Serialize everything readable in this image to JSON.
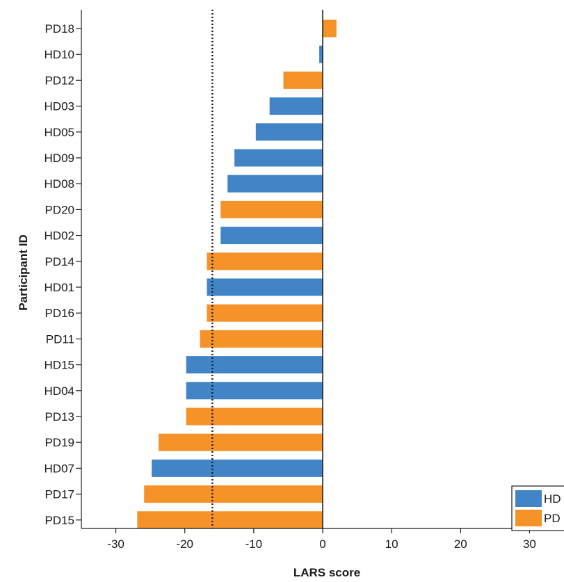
{
  "chart_data": {
    "type": "bar",
    "orientation": "horizontal",
    "xlabel": "LARS score",
    "ylabel": "Participant ID",
    "xlim": [
      -35,
      35
    ],
    "xticks": [
      -30,
      -20,
      -10,
      0,
      10,
      20,
      30
    ],
    "reference_line": {
      "x": -16,
      "style": "dotted"
    },
    "zero_line": {
      "x": 0
    },
    "grid": false,
    "legend": {
      "placement": "bottom-right",
      "entries": [
        {
          "label": "HD",
          "color": "#4285c7"
        },
        {
          "label": "PD",
          "color": "#f59228"
        }
      ]
    },
    "bars": [
      {
        "id": "PD18",
        "group": "PD",
        "value": 2
      },
      {
        "id": "HD10",
        "group": "HD",
        "value": -0.5
      },
      {
        "id": "PD12",
        "group": "PD",
        "value": -5.7
      },
      {
        "id": "HD03",
        "group": "HD",
        "value": -7.7
      },
      {
        "id": "HD05",
        "group": "HD",
        "value": -9.7
      },
      {
        "id": "HD09",
        "group": "HD",
        "value": -12.8
      },
      {
        "id": "HD08",
        "group": "HD",
        "value": -13.8
      },
      {
        "id": "PD20",
        "group": "PD",
        "value": -14.8
      },
      {
        "id": "HD02",
        "group": "HD",
        "value": -14.8
      },
      {
        "id": "PD14",
        "group": "PD",
        "value": -16.8
      },
      {
        "id": "HD01",
        "group": "HD",
        "value": -16.8
      },
      {
        "id": "PD16",
        "group": "PD",
        "value": -16.8
      },
      {
        "id": "PD11",
        "group": "PD",
        "value": -17.8
      },
      {
        "id": "HD15",
        "group": "HD",
        "value": -19.8
      },
      {
        "id": "HD04",
        "group": "HD",
        "value": -19.8
      },
      {
        "id": "PD13",
        "group": "PD",
        "value": -19.8
      },
      {
        "id": "PD19",
        "group": "PD",
        "value": -23.8
      },
      {
        "id": "HD07",
        "group": "HD",
        "value": -24.8
      },
      {
        "id": "PD17",
        "group": "PD",
        "value": -25.9
      },
      {
        "id": "PD15",
        "group": "PD",
        "value": -26.9
      }
    ]
  },
  "colors": {
    "HD": "#4285c7",
    "PD": "#f59228",
    "axis": "#1a1a1a"
  }
}
